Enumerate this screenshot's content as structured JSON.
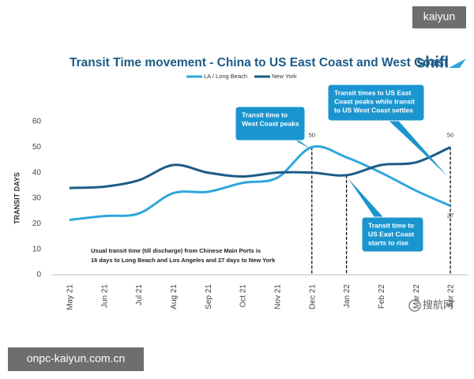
{
  "chart_data": {
    "type": "line",
    "title": "Transit Time movement - China to US East Coast and West Coast",
    "logo": "shifl",
    "y_label": "TRANSIT DAYS",
    "categories": [
      "May 21",
      "Jun 21",
      "Jul 21",
      "Aug 21",
      "Sep 21",
      "Oct 21",
      "Nov 21",
      "Dec 21",
      "Jan 22",
      "Feb 22",
      "Mar 22",
      "Apr 22"
    ],
    "series": [
      {
        "name": "LA / Long Beach",
        "color": "#2ea6db",
        "values": [
          21.5,
          23,
          24,
          32,
          32.5,
          36,
          38,
          50,
          46,
          40,
          33,
          27
        ]
      },
      {
        "name": "New York",
        "color": "#1d5b86",
        "values": [
          34,
          34.5,
          37,
          43,
          40,
          38.5,
          40,
          40,
          39,
          43,
          44,
          50
        ]
      }
    ],
    "ylim": [
      0,
      60
    ],
    "yticks": [
      0,
      10,
      20,
      30,
      40,
      50,
      60
    ],
    "grid": false,
    "data_labels": [
      {
        "series": 0,
        "index": 7
      },
      {
        "series": 1,
        "index": 11
      },
      {
        "series": 0,
        "index": 11
      }
    ],
    "note": [
      "Usual transit time (till discharge) from Chinese Main Ports is",
      "16 days to Long Beach and Los Angeles and 27 days to New York"
    ],
    "callouts": [
      {
        "lines": [
          "Transit time to",
          "West Coast peaks"
        ]
      },
      {
        "lines": [
          "Transit times to US East",
          "Coast peaks while transit",
          "to US West Coast settles"
        ]
      },
      {
        "lines": [
          "Transit time to",
          "US East Coast",
          "starts to rise"
        ]
      }
    ]
  },
  "watermarks": [
    "kaiyun",
    "onpc-kaiyun.com.cn",
    "搜航网"
  ]
}
